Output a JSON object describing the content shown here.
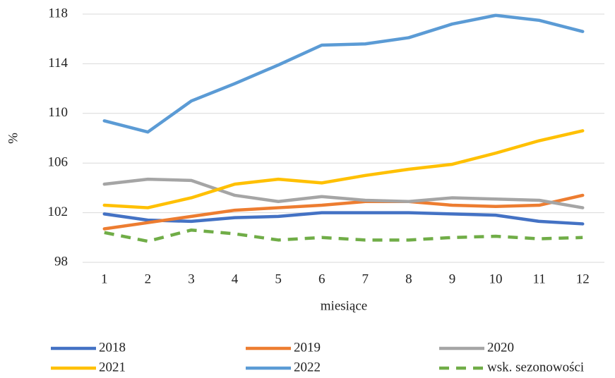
{
  "chart_data": {
    "type": "line",
    "x_label": "miesiące",
    "y_label": "%",
    "categories": [
      "1",
      "2",
      "3",
      "4",
      "5",
      "6",
      "7",
      "8",
      "9",
      "10",
      "11",
      "12"
    ],
    "series": [
      {
        "name": "2018",
        "color": "#4472c4",
        "values": [
          101.9,
          101.4,
          101.3,
          101.6,
          101.7,
          102.0,
          102.0,
          102.0,
          101.9,
          101.8,
          101.3,
          101.1
        ]
      },
      {
        "name": "2019",
        "color": "#ed7d31",
        "values": [
          100.7,
          101.2,
          101.7,
          102.2,
          102.4,
          102.6,
          102.9,
          102.9,
          102.6,
          102.5,
          102.6,
          103.4
        ]
      },
      {
        "name": "2020",
        "color": "#a5a5a5",
        "values": [
          104.3,
          104.7,
          104.6,
          103.4,
          102.9,
          103.3,
          103.0,
          102.9,
          103.2,
          103.1,
          103.0,
          102.4
        ]
      },
      {
        "name": "2021",
        "color": "#ffc000",
        "values": [
          102.6,
          102.4,
          103.2,
          104.3,
          104.7,
          104.4,
          105.0,
          105.5,
          105.9,
          106.8,
          107.8,
          108.6
        ]
      },
      {
        "name": "2022",
        "color": "#5b9bd5",
        "values": [
          109.4,
          108.5,
          111.0,
          112.4,
          113.9,
          115.5,
          115.6,
          116.1,
          117.2,
          117.9,
          117.5,
          116.6
        ]
      },
      {
        "name": "wsk. sezonowości",
        "color": "#70ad47",
        "dashed": true,
        "values": [
          100.4,
          99.7,
          100.6,
          100.3,
          99.8,
          100.0,
          99.8,
          99.8,
          100.0,
          100.1,
          99.9,
          100.0
        ]
      }
    ],
    "ylim": [
      98,
      118
    ],
    "yticks": [
      98,
      102,
      106,
      110,
      114,
      118
    ],
    "grid": true,
    "legend": "bottom"
  }
}
